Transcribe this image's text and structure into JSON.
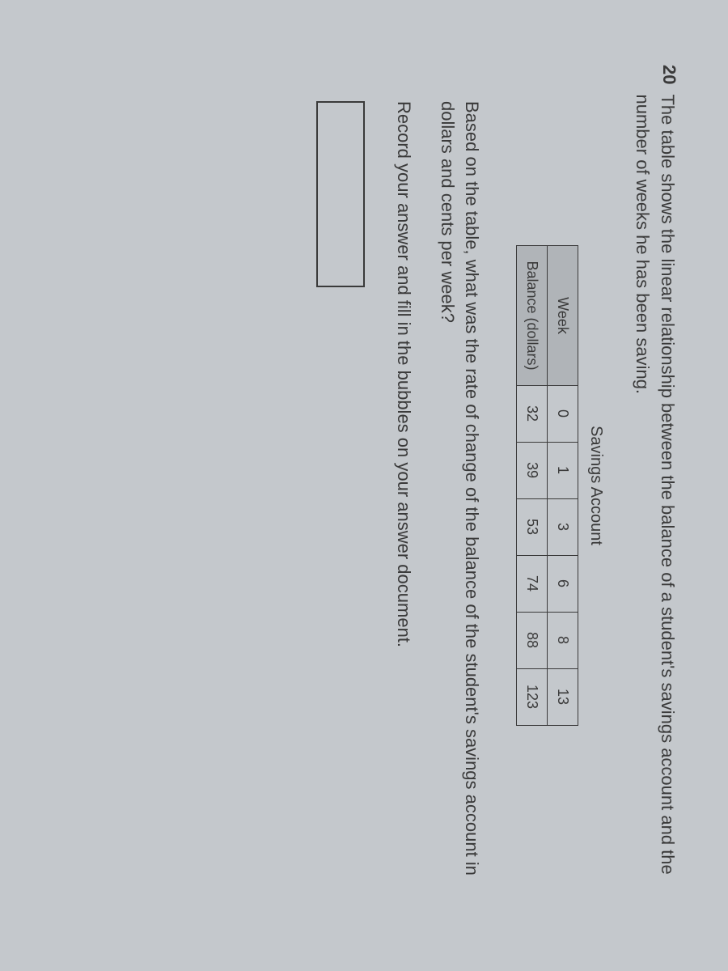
{
  "question": {
    "number": "20",
    "text": "The table shows the linear relationship between the balance of a student's savings account and the number of weeks he has been saving."
  },
  "table": {
    "title": "Savings Account",
    "row_headers": [
      "Week",
      "Balance (dollars)"
    ],
    "columns": [
      "0",
      "1",
      "3",
      "6",
      "8",
      "13"
    ],
    "rows": [
      [
        "32",
        "39",
        "53",
        "74",
        "88",
        "123"
      ]
    ],
    "header_bg": "#b0b4b8",
    "border_color": "#3a3a3a",
    "cell_fontsize": 18
  },
  "followup": "Based on the table, what was the rate of change of the balance of the student's savings account in dollars and cents per week?",
  "instruction": "Record your answer and fill in the bubbles on your answer document.",
  "colors": {
    "background": "#c4c8cc",
    "text": "#3a3a3a"
  },
  "typography": {
    "question_fontsize": 22,
    "title_fontsize": 20
  }
}
